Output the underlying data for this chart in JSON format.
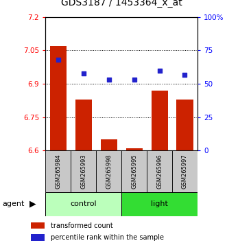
{
  "title": "GDS3187 / 1453364_x_at",
  "samples": [
    "GSM265984",
    "GSM265993",
    "GSM265998",
    "GSM265995",
    "GSM265996",
    "GSM265997"
  ],
  "groups": [
    "control",
    "control",
    "control",
    "light",
    "light",
    "light"
  ],
  "bar_values": [
    7.07,
    6.83,
    6.65,
    6.61,
    6.87,
    6.83
  ],
  "scatter_values": [
    68,
    58,
    53,
    53,
    60,
    57
  ],
  "ylim_left": [
    6.6,
    7.2
  ],
  "ylim_right": [
    0,
    100
  ],
  "yticks_left": [
    6.6,
    6.75,
    6.9,
    7.05,
    7.2
  ],
  "yticks_right": [
    0,
    25,
    50,
    75,
    100
  ],
  "ytick_labels_left": [
    "6.6",
    "6.75",
    "6.9",
    "7.05",
    "7.2"
  ],
  "ytick_labels_right": [
    "0",
    "25",
    "50",
    "75",
    "100%"
  ],
  "hlines": [
    6.75,
    6.9,
    7.05
  ],
  "bar_color": "#cc2200",
  "scatter_color": "#2222cc",
  "bar_bottom": 6.6,
  "control_color": "#bbffbb",
  "light_color": "#33dd33",
  "gray_color": "#c8c8c8",
  "control_label": "control",
  "light_label": "light",
  "agent_label": "agent",
  "legend_bar_label": "transformed count",
  "legend_scatter_label": "percentile rank within the sample",
  "title_fontsize": 10,
  "tick_fontsize": 7.5,
  "sample_fontsize": 6,
  "group_fontsize": 8,
  "legend_fontsize": 7
}
